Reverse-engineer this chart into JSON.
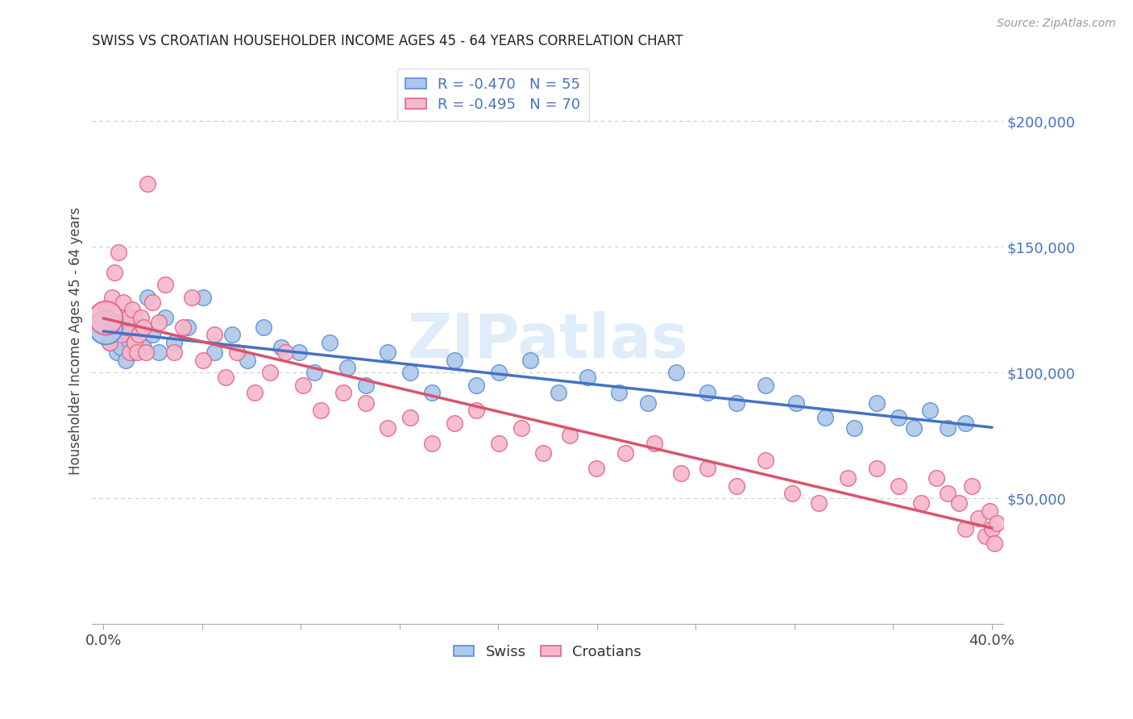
{
  "title": "SWISS VS CROATIAN HOUSEHOLDER INCOME AGES 45 - 64 YEARS CORRELATION CHART",
  "source": "Source: ZipAtlas.com",
  "ylabel": "Householder Income Ages 45 - 64 years",
  "xlim": [
    -0.005,
    0.405
  ],
  "ylim": [
    0,
    225000
  ],
  "yticks_right": [
    50000,
    100000,
    150000,
    200000
  ],
  "ytick_labels_right": [
    "$50,000",
    "$100,000",
    "$150,000",
    "$200,000"
  ],
  "swiss_color": "#adc8e8",
  "croatian_color": "#f5b8cb",
  "swiss_edge_color": "#5b8dd9",
  "croatian_edge_color": "#e8608a",
  "swiss_line_color": "#4472c4",
  "croatian_line_color": "#d9546e",
  "legend_r_swiss": "R = -0.470",
  "legend_n_swiss": "N = 55",
  "legend_r_croatian": "R = -0.495",
  "legend_n_croatian": "N = 70",
  "watermark": "ZIPatlas",
  "swiss_x": [
    0.001,
    0.003,
    0.005,
    0.006,
    0.007,
    0.008,
    0.009,
    0.01,
    0.011,
    0.012,
    0.013,
    0.014,
    0.016,
    0.018,
    0.02,
    0.022,
    0.025,
    0.028,
    0.032,
    0.038,
    0.045,
    0.05,
    0.058,
    0.065,
    0.072,
    0.08,
    0.088,
    0.095,
    0.102,
    0.11,
    0.118,
    0.128,
    0.138,
    0.148,
    0.158,
    0.168,
    0.178,
    0.192,
    0.205,
    0.218,
    0.232,
    0.245,
    0.258,
    0.272,
    0.285,
    0.298,
    0.312,
    0.325,
    0.338,
    0.348,
    0.358,
    0.365,
    0.372,
    0.38,
    0.388
  ],
  "swiss_y": [
    118000,
    112000,
    120000,
    108000,
    115000,
    110000,
    118000,
    105000,
    115000,
    112000,
    108000,
    122000,
    118000,
    110000,
    130000,
    115000,
    108000,
    122000,
    112000,
    118000,
    130000,
    108000,
    115000,
    105000,
    118000,
    110000,
    108000,
    100000,
    112000,
    102000,
    95000,
    108000,
    100000,
    92000,
    105000,
    95000,
    100000,
    105000,
    92000,
    98000,
    92000,
    88000,
    100000,
    92000,
    88000,
    95000,
    88000,
    82000,
    78000,
    88000,
    82000,
    78000,
    85000,
    78000,
    80000
  ],
  "swiss_large_x": [
    0.001
  ],
  "swiss_large_y": [
    118000
  ],
  "croatian_x": [
    0.001,
    0.002,
    0.003,
    0.004,
    0.005,
    0.006,
    0.007,
    0.008,
    0.009,
    0.01,
    0.011,
    0.012,
    0.013,
    0.014,
    0.015,
    0.016,
    0.017,
    0.018,
    0.019,
    0.02,
    0.022,
    0.025,
    0.028,
    0.032,
    0.036,
    0.04,
    0.045,
    0.05,
    0.055,
    0.06,
    0.068,
    0.075,
    0.082,
    0.09,
    0.098,
    0.108,
    0.118,
    0.128,
    0.138,
    0.148,
    0.158,
    0.168,
    0.178,
    0.188,
    0.198,
    0.21,
    0.222,
    0.235,
    0.248,
    0.26,
    0.272,
    0.285,
    0.298,
    0.31,
    0.322,
    0.335,
    0.348,
    0.358,
    0.368,
    0.375,
    0.38,
    0.385,
    0.388,
    0.391,
    0.394,
    0.397,
    0.399,
    0.4,
    0.401,
    0.402
  ],
  "croatian_y": [
    125000,
    118000,
    112000,
    130000,
    140000,
    120000,
    148000,
    115000,
    128000,
    118000,
    122000,
    108000,
    125000,
    112000,
    108000,
    115000,
    122000,
    118000,
    108000,
    175000,
    128000,
    120000,
    135000,
    108000,
    118000,
    130000,
    105000,
    115000,
    98000,
    108000,
    92000,
    100000,
    108000,
    95000,
    85000,
    92000,
    88000,
    78000,
    82000,
    72000,
    80000,
    85000,
    72000,
    78000,
    68000,
    75000,
    62000,
    68000,
    72000,
    60000,
    62000,
    55000,
    65000,
    52000,
    48000,
    58000,
    62000,
    55000,
    48000,
    58000,
    52000,
    48000,
    38000,
    55000,
    42000,
    35000,
    45000,
    38000,
    32000,
    40000
  ],
  "croatian_large_x": [
    0.001
  ],
  "croatian_large_y": [
    122000
  ],
  "background_color": "#ffffff",
  "grid_color": "#cccccc",
  "title_color": "#222222",
  "axis_label_color": "#444444",
  "right_tick_color": "#4472c4",
  "dot_size": 200,
  "large_dot_size": 900
}
